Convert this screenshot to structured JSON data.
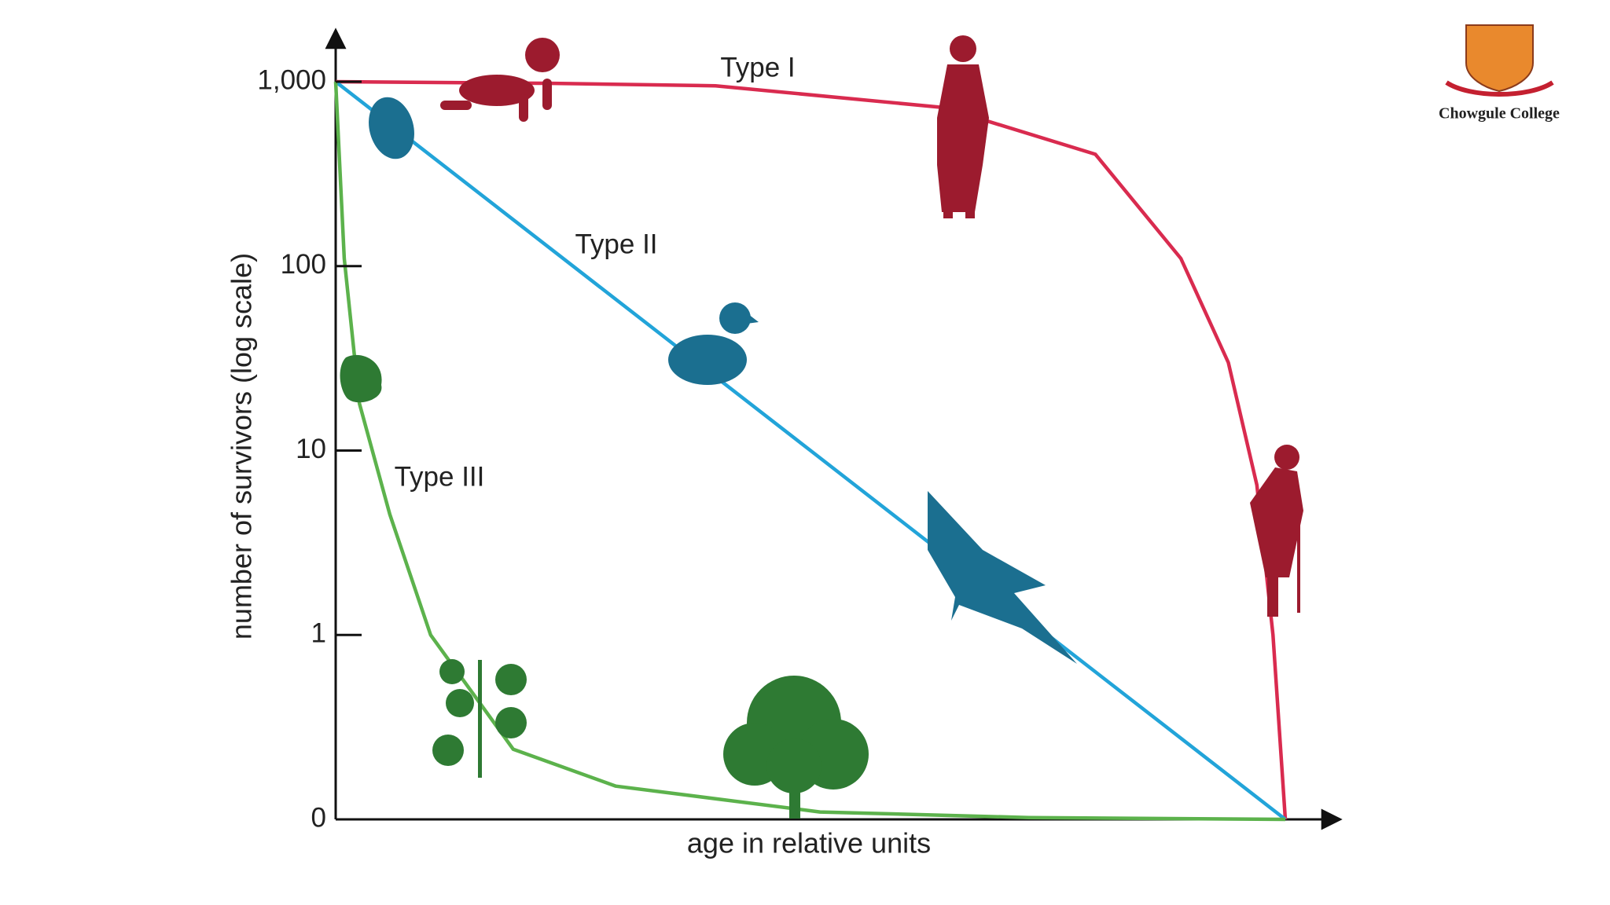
{
  "chart_data": {
    "type": "line",
    "y_label": "number of survivors (log scale)",
    "x_label": "age in relative units",
    "log_scale": true,
    "xlim": [
      0,
      100
    ],
    "ylim": [
      0,
      1000
    ],
    "yticks": [
      0,
      1,
      10,
      100,
      {
        "value": 1000,
        "label": "1,000"
      }
    ],
    "series": [
      {
        "name": "Type I",
        "color": "#d92b4f",
        "x": [
          0,
          23,
          40,
          64,
          80,
          89,
          94,
          97,
          98.7,
          100
        ],
        "values": [
          1000,
          980,
          950,
          724,
          404,
          110,
          30,
          6.5,
          1,
          0
        ]
      },
      {
        "name": "Type II",
        "color": "#22a4d9",
        "x": [
          0,
          25,
          50,
          75,
          100
        ],
        "values": [
          1000,
          100,
          10,
          1,
          0
        ]
      },
      {
        "name": "Type III",
        "color": "#5cb24c",
        "x": [
          0,
          0.9,
          2.5,
          5.7,
          10,
          18.7,
          29.5,
          51,
          73,
          100
        ],
        "values": [
          1000,
          110,
          18,
          4.5,
          1,
          0.38,
          0.18,
          0.04,
          0.01,
          0
        ]
      }
    ],
    "logo_text": "Chowgule College"
  }
}
